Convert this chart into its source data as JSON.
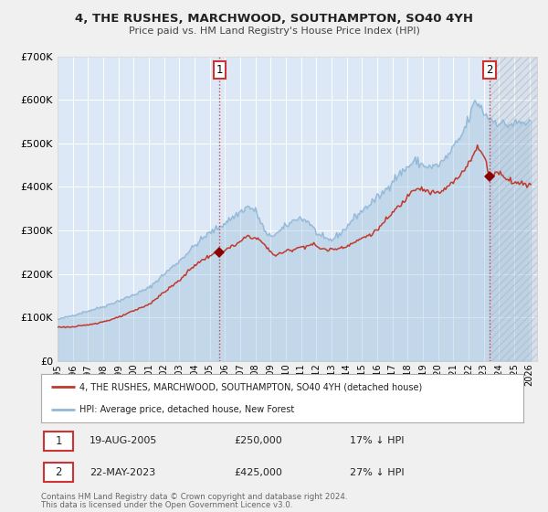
{
  "title": "4, THE RUSHES, MARCHWOOD, SOUTHAMPTON, SO40 4YH",
  "subtitle": "Price paid vs. HM Land Registry's House Price Index (HPI)",
  "fig_bg_color": "#f0f0f0",
  "plot_bg_color": "#dce8f5",
  "hpi_color": "#92b8d8",
  "price_color": "#c0392b",
  "marker_color": "#8b0000",
  "ylim": [
    0,
    700000
  ],
  "yticks": [
    0,
    100000,
    200000,
    300000,
    400000,
    500000,
    600000,
    700000
  ],
  "xlim_start": 1995.0,
  "xlim_end": 2026.5,
  "sale1_year": 2005.633,
  "sale1_price": 250000,
  "sale1_label": "19-AUG-2005",
  "sale1_hpi_pct": "17% ↓ HPI",
  "sale2_year": 2023.388,
  "sale2_price": 425000,
  "sale2_label": "22-MAY-2023",
  "sale2_hpi_pct": "27% ↓ HPI",
  "legend_line1": "4, THE RUSHES, MARCHWOOD, SOUTHAMPTON, SO40 4YH (detached house)",
  "legend_line2": "HPI: Average price, detached house, New Forest",
  "footnote1": "Contains HM Land Registry data © Crown copyright and database right 2024.",
  "footnote2": "This data is licensed under the Open Government Licence v3.0.",
  "grid_color": "#ffffff",
  "hatch_region_color": "#cccccc"
}
